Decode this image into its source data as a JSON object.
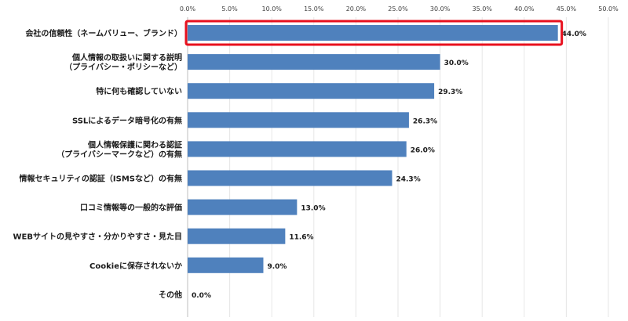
{
  "chart_data": {
    "type": "bar",
    "orientation": "horizontal",
    "categories": [
      [
        "会社の信頼性（ネームバリュー、ブランド）"
      ],
      [
        "個人情報の取扱いに関する説明",
        "（プライバシー・ポリシーなど）"
      ],
      [
        "特に何も確認していない"
      ],
      [
        "SSLによるデータ暗号化の有無"
      ],
      [
        "個人情報保護に関わる認証",
        "（プライバシーマークなど）の有無"
      ],
      [
        "情報セキュリティの認証（ISMSなど）の有無"
      ],
      [
        "口コミ情報等の一般的な評価"
      ],
      [
        "WEBサイトの見やすさ・分かりやすさ・見た目"
      ],
      [
        "Cookieに保存されないか"
      ],
      [
        "その他"
      ]
    ],
    "values": [
      44.0,
      30.0,
      29.3,
      26.3,
      26.0,
      24.3,
      13.0,
      11.6,
      9.0,
      0.0
    ],
    "value_labels": [
      "44.0%",
      "30.0%",
      "29.3%",
      "26.3%",
      "26.0%",
      "24.3%",
      "13.0%",
      "11.6%",
      "9.0%",
      "0.0%"
    ],
    "xlim": [
      0,
      50
    ],
    "ticks": [
      "0.0%",
      "5.0%",
      "10.0%",
      "15.0%",
      "20.0%",
      "25.0%",
      "30.0%",
      "35.0%",
      "40.0%",
      "45.0%",
      "50.0%"
    ],
    "tick_values": [
      0,
      5,
      10,
      15,
      20,
      25,
      30,
      35,
      40,
      45,
      50
    ],
    "axis_position": "top",
    "grid": true,
    "highlighted_index": 0,
    "colors": {
      "bar": "#4f81bd",
      "highlight": "#e8101e"
    }
  }
}
